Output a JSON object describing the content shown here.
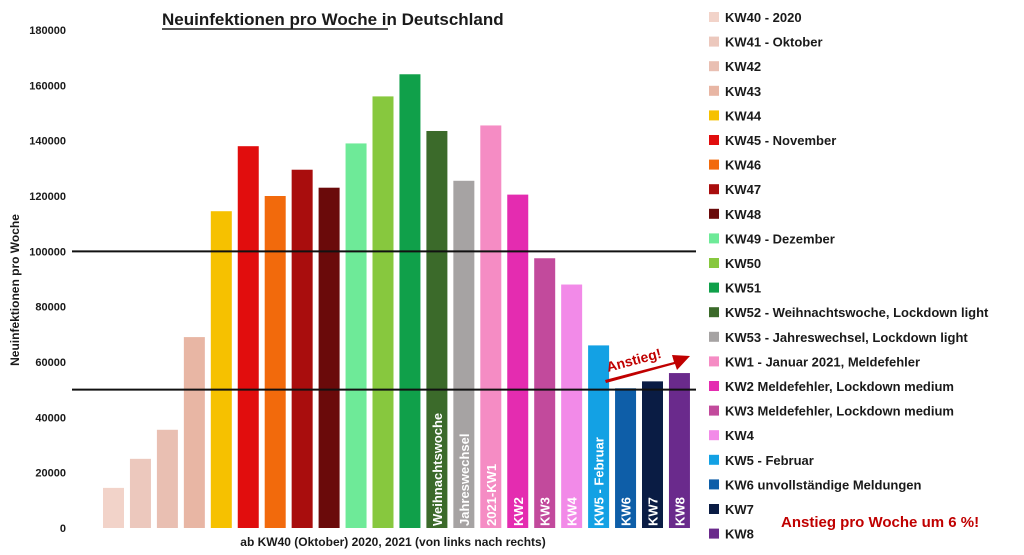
{
  "chart_data": {
    "type": "bar",
    "title": "Neuinfektionen pro Woche in Deutschland",
    "title_underlined": "Neuinfektionen pro Woche",
    "xlabel": "ab KW40 (Oktober) 2020, 2021 (von links nach rechts)",
    "ylabel": "Neuinfektionen pro Woche",
    "ylim": [
      0,
      180000
    ],
    "yticks": [
      "0",
      "20000",
      "40000",
      "60000",
      "80000",
      "100000",
      "120000",
      "140000",
      "160000",
      "180000"
    ],
    "reference_lines": [
      100000,
      50000
    ],
    "legend_position": "right",
    "categories": [
      "KW40",
      "KW41",
      "KW42",
      "KW43",
      "KW44",
      "KW45",
      "KW46",
      "KW47",
      "KW48",
      "KW49",
      "KW50",
      "KW51",
      "KW52",
      "KW53",
      "KW1",
      "KW2",
      "KW3",
      "KW4",
      "KW5",
      "KW6",
      "KW7",
      "KW8"
    ],
    "values": [
      14500,
      25000,
      35500,
      69000,
      114500,
      138000,
      120000,
      129500,
      123000,
      139000,
      156000,
      164000,
      143500,
      125500,
      145500,
      120500,
      97500,
      88000,
      66000,
      50500,
      53000,
      56000
    ],
    "colors": [
      "#f2d3c9",
      "#ecc8bd",
      "#e9bfb2",
      "#e8b6a4",
      "#f6c100",
      "#e10d0d",
      "#f26a0c",
      "#a90d0d",
      "#6a0a0a",
      "#6eea98",
      "#87c83e",
      "#10a04a",
      "#3b6a2a",
      "#a6a3a3",
      "#f58cc4",
      "#e42cb0",
      "#c24a9c",
      "#f28ae8",
      "#13a1e4",
      "#0e5ea8",
      "#0a1c44",
      "#6a2a8c"
    ],
    "bar_labels": [
      "",
      "",
      "",
      "",
      "",
      "",
      "",
      "",
      "",
      "",
      "",
      "",
      "Weihnachtswoche",
      "Jahreswechsel",
      "2021-KW1",
      "KW2",
      "KW3",
      "KW4",
      "KW5 - Februar",
      "KW6",
      "KW7",
      "KW8"
    ],
    "legend": [
      "KW40 - 2020",
      "KW41 - Oktober",
      "KW42",
      "KW43",
      "KW44",
      "KW45 - November",
      "KW46",
      "KW47",
      "KW48",
      "KW49 - Dezember",
      "KW50",
      "KW51",
      "KW52 - Weihnachtswoche, Lockdown light",
      "KW53 - Jahreswechsel, Lockdown light",
      "KW1 - Januar 2021, Meldefehler",
      "KW2 Meldefehler, Lockdown medium",
      "KW3 Meldefehler, Lockdown medium",
      "KW4",
      "KW5 - Februar",
      "KW6 unvollständige Meldungen",
      "KW7",
      "KW8"
    ],
    "annotations": {
      "arrow_label": "Anstieg!",
      "note": "Anstieg pro Woche um 6 %!"
    }
  }
}
